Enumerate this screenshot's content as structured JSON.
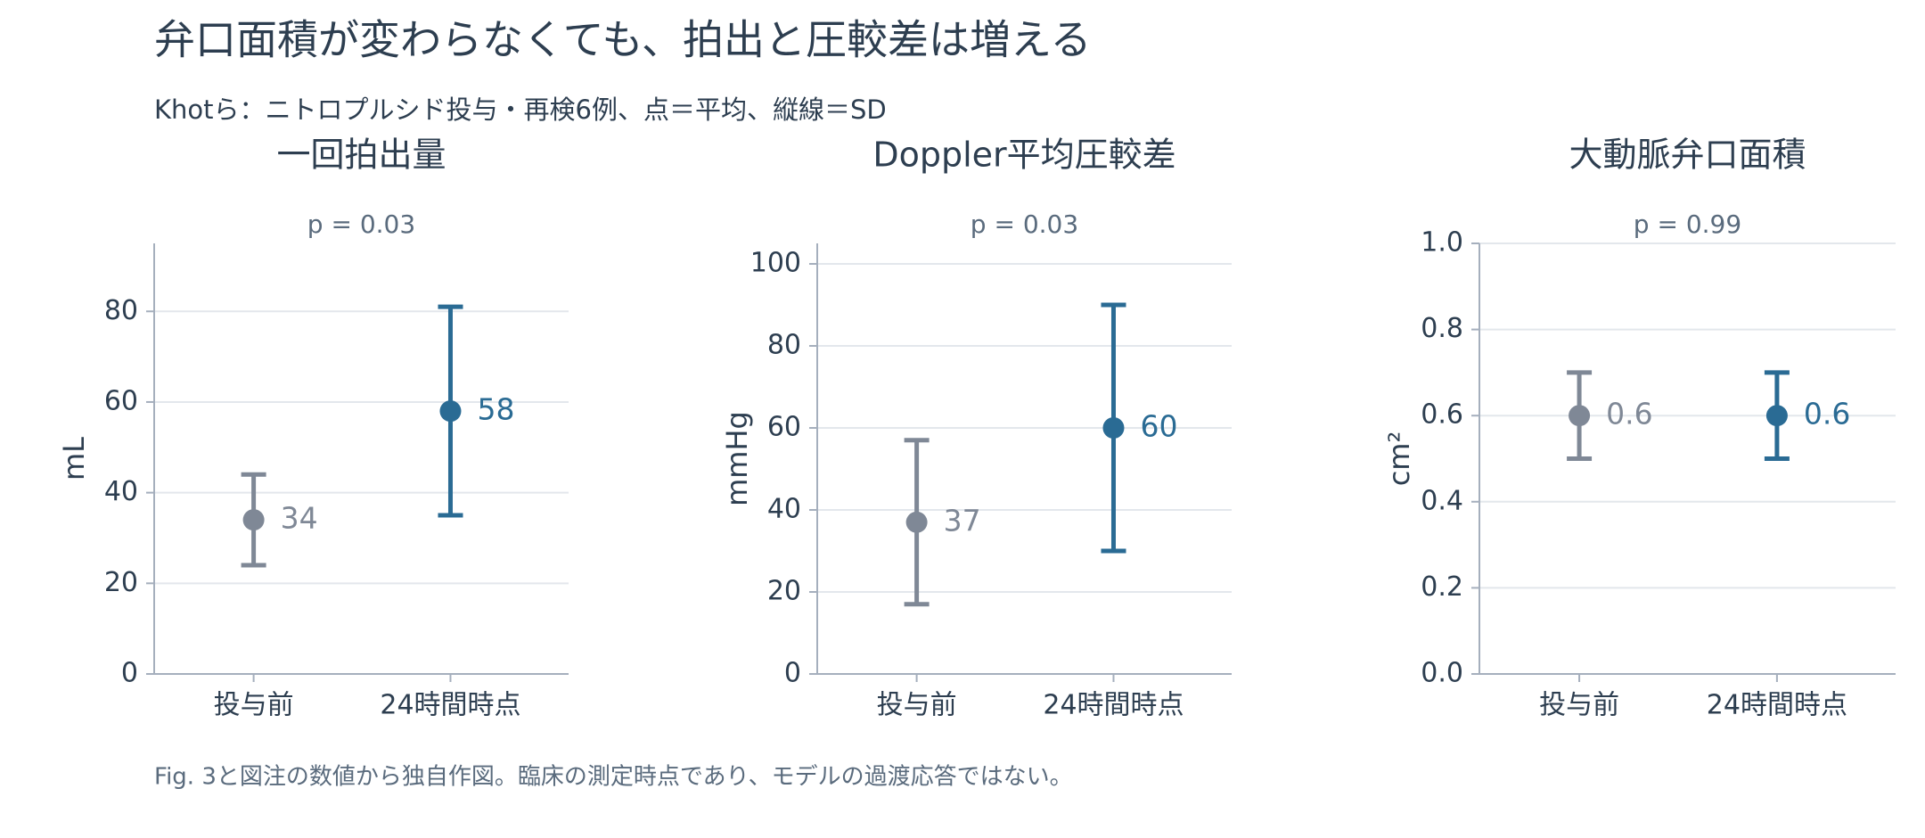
{
  "title": "弁口面積が変わらなくても、拍出と圧較差は増える",
  "subtitle": "Khotら：ニトロプルシド投与・再検6例、点＝平均、縦線＝SD",
  "note": "Fig. 3と図注の数値から独自作図。臨床の測定時点であり、モデルの過渡応答ではない。",
  "chart_data": [
    {
      "type": "errorbar",
      "title": "一回拍出量",
      "annotation": "p = 0.03",
      "ylabel": "mL",
      "categories": [
        "投与前",
        "24時間時点"
      ],
      "values": [
        34,
        58
      ],
      "errors": [
        10,
        23
      ],
      "colors": [
        "#7f8896",
        "#2a6b94"
      ],
      "ylim": [
        0,
        95
      ],
      "yticks": [
        0,
        20,
        40,
        60,
        80
      ],
      "grid": true
    },
    {
      "type": "errorbar",
      "title": "Doppler平均圧較差",
      "annotation": "p = 0.03",
      "ylabel": "mmHg",
      "categories": [
        "投与前",
        "24時間時点"
      ],
      "values": [
        37,
        60
      ],
      "errors": [
        20,
        30
      ],
      "colors": [
        "#7f8896",
        "#2a6b94"
      ],
      "ylim": [
        0,
        105
      ],
      "yticks": [
        0,
        20,
        40,
        60,
        80,
        100
      ],
      "grid": true
    },
    {
      "type": "errorbar",
      "title": "大動脈弁口面積",
      "annotation": "p = 0.99",
      "ylabel": "cm²",
      "categories": [
        "投与前",
        "24時間時点"
      ],
      "values": [
        0.6,
        0.6
      ],
      "errors": [
        0.1,
        0.1
      ],
      "colors": [
        "#7f8896",
        "#2a6b94"
      ],
      "ylim": [
        0,
        1
      ],
      "yticks": [
        {
          "value": 0,
          "label": "0.0"
        },
        0.2,
        0.4,
        0.6,
        0.8,
        {
          "value": 1,
          "label": "1.0"
        }
      ],
      "grid": true
    }
  ]
}
